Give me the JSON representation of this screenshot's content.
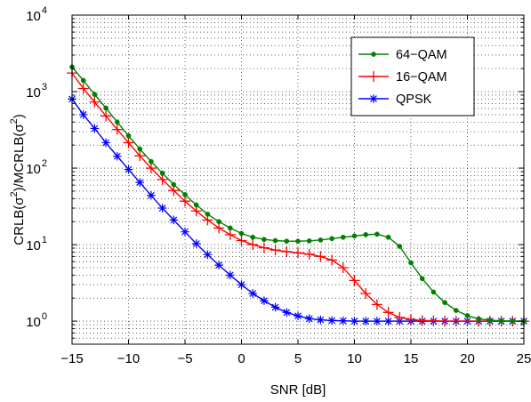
{
  "chart_data": {
    "type": "line",
    "xlabel": "SNR [dB]",
    "ylabel_parts": [
      "CRLB(σ",
      "2",
      ")/MCRLB(σ",
      "2",
      ")"
    ],
    "xlim": [
      -15,
      25
    ],
    "ylim": [
      0.5,
      10000
    ],
    "yscale": "log",
    "xticks": [
      "−15",
      "−10",
      "−5",
      "0",
      "5",
      "10",
      "15",
      "20",
      "25"
    ],
    "xtick_values": [
      -15,
      -10,
      -5,
      0,
      5,
      10,
      15,
      20,
      25
    ],
    "ytick_base": "10",
    "ytick_exponents": [
      "0",
      "1",
      "2",
      "3",
      "4"
    ],
    "grid": true,
    "legend_position": "top-right",
    "x": [
      -15,
      -14,
      -13,
      -12,
      -11,
      -10,
      -9,
      -8,
      -7,
      -6,
      -5,
      -4,
      -3,
      -2,
      -1,
      0,
      1,
      2,
      3,
      4,
      5,
      6,
      7,
      8,
      9,
      10,
      11,
      12,
      13,
      14,
      15,
      16,
      17,
      18,
      19,
      20,
      21,
      22,
      23,
      24,
      25
    ],
    "series": [
      {
        "name": "64−QAM",
        "color": "#008000",
        "marker": "dot",
        "values": [
          2100,
          1400,
          920,
          610,
          400,
          265,
          178,
          122,
          86,
          61,
          45,
          33,
          25,
          20,
          16.5,
          14,
          12.5,
          11.7,
          11.3,
          11.1,
          11.1,
          11.2,
          11.5,
          12,
          12.5,
          13,
          13.5,
          13.7,
          12.5,
          9.5,
          5.8,
          3.6,
          2.4,
          1.75,
          1.38,
          1.18,
          1.07,
          1.03,
          1.01,
          1.005,
          1.0
        ]
      },
      {
        "name": "16−QAM",
        "color": "#ff0000",
        "marker": "plus",
        "values": [
          1750,
          1100,
          730,
          480,
          320,
          215,
          145,
          100,
          71,
          51,
          37,
          27.5,
          21,
          16.5,
          13.5,
          11.3,
          10,
          9.1,
          8.5,
          8.1,
          7.8,
          7.5,
          7.0,
          6.3,
          5.0,
          3.4,
          2.3,
          1.65,
          1.3,
          1.12,
          1.05,
          1.02,
          1.01,
          1.0,
          1.0,
          1.0,
          1.0,
          1.0,
          1.0,
          1.0,
          1.0
        ]
      },
      {
        "name": "QPSK",
        "color": "#0000ff",
        "marker": "asterisk",
        "values": [
          800,
          500,
          330,
          215,
          143,
          96,
          65,
          44,
          30,
          21,
          14.7,
          10.3,
          7.4,
          5.4,
          4.0,
          3.0,
          2.3,
          1.85,
          1.52,
          1.3,
          1.17,
          1.08,
          1.04,
          1.02,
          1.01,
          1.0,
          1.0,
          1.0,
          1.0,
          1.0,
          1.0,
          1.0,
          1.0,
          1.0,
          1.0,
          1.0,
          1.0,
          1.0,
          1.0,
          1.0,
          1.0
        ]
      }
    ]
  }
}
